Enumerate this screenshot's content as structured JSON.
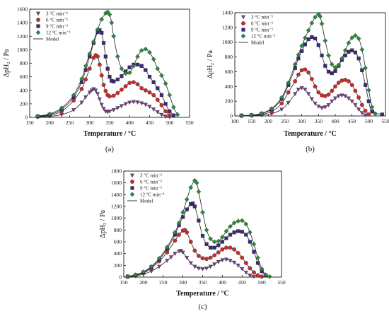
{
  "chart_data": [
    {
      "type": "scatter",
      "panel_label": "(a)",
      "xlabel": "Temperature / °C",
      "ylabel": "ΔpH₂ / Pa",
      "xlim": [
        150,
        550
      ],
      "ylim": [
        0,
        1600
      ],
      "xticks": [
        "150",
        "200",
        "250",
        "300",
        "350",
        "400",
        "450",
        "500",
        "550"
      ],
      "yticks": [
        "0",
        "200",
        "400",
        "600",
        "800",
        "1000",
        "1200",
        "1400",
        "1600"
      ],
      "legend_placement": "top-left",
      "legend": [
        "3 °C min⁻¹",
        "6 °C min⁻¹",
        "9 °C min⁻¹",
        "12 °C min⁻¹",
        "Model"
      ],
      "series": [
        {
          "rate": 3,
          "color": "#7b3f8c",
          "marker": "triangle-down",
          "x": [
            170,
            200,
            230,
            260,
            280,
            290,
            300,
            305,
            310,
            315,
            320,
            325,
            330,
            335,
            340,
            345,
            350,
            360,
            370,
            380,
            390,
            400,
            410,
            420,
            430,
            440,
            450,
            460,
            470,
            480,
            490,
            500
          ],
          "y": [
            5,
            15,
            40,
            110,
            220,
            300,
            370,
            400,
            420,
            400,
            350,
            270,
            190,
            130,
            90,
            80,
            90,
            110,
            140,
            170,
            200,
            220,
            230,
            225,
            210,
            190,
            160,
            120,
            80,
            40,
            15,
            5
          ]
        },
        {
          "rate": 6,
          "color": "#cc2b2b",
          "marker": "circle",
          "x": [
            170,
            200,
            230,
            260,
            280,
            290,
            300,
            310,
            315,
            320,
            325,
            330,
            335,
            340,
            345,
            350,
            360,
            370,
            380,
            390,
            400,
            410,
            420,
            430,
            440,
            450,
            460,
            470,
            480,
            490,
            500
          ],
          "y": [
            10,
            30,
            90,
            250,
            420,
            560,
            720,
            880,
            920,
            900,
            780,
            620,
            480,
            390,
            330,
            310,
            320,
            360,
            410,
            460,
            510,
            520,
            490,
            430,
            400,
            370,
            330,
            260,
            180,
            90,
            30
          ]
        },
        {
          "rate": 9,
          "color": "#3a2a78",
          "marker": "square",
          "x": [
            170,
            200,
            230,
            260,
            280,
            290,
            300,
            310,
            320,
            325,
            330,
            335,
            340,
            345,
            350,
            355,
            360,
            370,
            380,
            390,
            400,
            410,
            420,
            430,
            440,
            450,
            460,
            470,
            480,
            490,
            500,
            510
          ],
          "y": [
            15,
            40,
            120,
            300,
            520,
            700,
            900,
            1100,
            1260,
            1290,
            1250,
            1100,
            900,
            720,
            600,
            540,
            530,
            560,
            610,
            680,
            740,
            780,
            780,
            760,
            700,
            600,
            520,
            430,
            330,
            200,
            90,
            30
          ]
        },
        {
          "rate": 12,
          "color": "#2a8a3a",
          "marker": "diamond",
          "x": [
            170,
            200,
            230,
            260,
            280,
            290,
            300,
            310,
            320,
            330,
            340,
            345,
            350,
            355,
            360,
            370,
            380,
            390,
            400,
            410,
            420,
            430,
            440,
            450,
            460,
            470,
            480,
            490,
            500,
            510,
            520
          ],
          "y": [
            20,
            50,
            140,
            330,
            570,
            760,
            940,
            1120,
            1300,
            1450,
            1540,
            1560,
            1520,
            1400,
            1200,
            900,
            720,
            650,
            660,
            760,
            900,
            990,
            1010,
            960,
            860,
            720,
            620,
            500,
            330,
            150,
            40
          ]
        }
      ]
    },
    {
      "type": "scatter",
      "panel_label": "(b)",
      "xlabel": "Temperature / °C",
      "ylabel": "ΔpH₂ / Pa",
      "xlim": [
        100,
        550
      ],
      "ylim": [
        0,
        1400
      ],
      "xticks": [
        "100",
        "150",
        "200",
        "250",
        "300",
        "350",
        "400",
        "450",
        "500",
        "550"
      ],
      "yticks": [
        "0",
        "200",
        "400",
        "600",
        "800",
        "1000",
        "1200",
        "1400"
      ],
      "legend_placement": "top-left",
      "legend": [
        "3 °C min⁻¹",
        "6 °C min⁻¹",
        "9 °C min⁻¹",
        "12 °C min⁻¹",
        "Model"
      ],
      "series": [
        {
          "rate": 3,
          "color": "#7b3f8c",
          "marker": "triangle-down",
          "x": [
            120,
            150,
            180,
            210,
            240,
            260,
            280,
            290,
            300,
            310,
            320,
            330,
            340,
            350,
            360,
            370,
            380,
            390,
            400,
            410,
            420,
            430,
            440,
            450,
            460,
            470,
            480,
            490
          ],
          "y": [
            2,
            5,
            12,
            30,
            90,
            180,
            300,
            360,
            380,
            360,
            300,
            230,
            170,
            130,
            110,
            120,
            150,
            200,
            240,
            270,
            280,
            270,
            240,
            200,
            150,
            90,
            40,
            10
          ]
        },
        {
          "rate": 6,
          "color": "#cc2b2b",
          "marker": "circle",
          "x": [
            120,
            150,
            180,
            210,
            240,
            260,
            280,
            290,
            300,
            310,
            320,
            330,
            340,
            350,
            360,
            370,
            380,
            390,
            400,
            410,
            420,
            430,
            440,
            450,
            460,
            470,
            480,
            490,
            500
          ],
          "y": [
            3,
            8,
            20,
            60,
            170,
            320,
            470,
            560,
            620,
            630,
            590,
            500,
            400,
            320,
            280,
            270,
            290,
            340,
            400,
            450,
            480,
            490,
            470,
            420,
            340,
            250,
            150,
            70,
            20
          ]
        },
        {
          "rate": 9,
          "color": "#3a2a78",
          "marker": "square",
          "x": [
            120,
            150,
            180,
            210,
            240,
            260,
            280,
            290,
            300,
            310,
            320,
            330,
            340,
            350,
            360,
            370,
            380,
            390,
            400,
            410,
            420,
            430,
            440,
            450,
            460,
            470,
            480,
            490,
            500,
            510,
            540
          ],
          "y": [
            5,
            10,
            30,
            90,
            230,
            420,
            650,
            780,
            880,
            970,
            1040,
            1070,
            1050,
            960,
            820,
            680,
            600,
            580,
            610,
            680,
            760,
            820,
            870,
            890,
            860,
            780,
            620,
            420,
            200,
            60,
            20
          ]
        },
        {
          "rate": 12,
          "color": "#2a8a3a",
          "marker": "diamond",
          "x": [
            120,
            150,
            180,
            210,
            240,
            260,
            280,
            290,
            300,
            310,
            320,
            330,
            340,
            350,
            355,
            360,
            370,
            380,
            390,
            400,
            410,
            420,
            430,
            440,
            450,
            460,
            470,
            480,
            490,
            500,
            510,
            520
          ],
          "y": [
            6,
            12,
            35,
            100,
            250,
            450,
            700,
            830,
            950,
            1060,
            1160,
            1260,
            1340,
            1380,
            1350,
            1250,
            1020,
            820,
            700,
            660,
            690,
            780,
            890,
            990,
            1060,
            1090,
            1050,
            900,
            650,
            350,
            120,
            30
          ]
        }
      ]
    },
    {
      "type": "scatter",
      "panel_label": "(c)",
      "xlabel": "Temperature / °C",
      "ylabel": "ΔpH₂ / Pa",
      "xlim": [
        150,
        550
      ],
      "ylim": [
        0,
        1800
      ],
      "xticks": [
        "150",
        "200",
        "250",
        "300",
        "350",
        "400",
        "450",
        "500",
        "550"
      ],
      "yticks": [
        "0",
        "200",
        "400",
        "600",
        "800",
        "1000",
        "1200",
        "1400",
        "1600",
        "1800"
      ],
      "legend_placement": "top-left",
      "legend": [
        "3 °C min⁻¹",
        "6 °C min⁻¹",
        "9 °C min⁻¹",
        "12 °C min⁻¹",
        "Model"
      ],
      "series": [
        {
          "rate": 3,
          "color": "#7b3f8c",
          "marker": "triangle-down",
          "x": [
            160,
            180,
            200,
            220,
            240,
            260,
            270,
            280,
            290,
            295,
            300,
            310,
            320,
            330,
            340,
            350,
            360,
            370,
            380,
            390,
            400,
            410,
            420,
            430,
            440,
            450,
            460,
            470,
            480
          ],
          "y": [
            5,
            20,
            50,
            100,
            180,
            280,
            340,
            400,
            440,
            450,
            420,
            330,
            240,
            180,
            150,
            140,
            150,
            180,
            220,
            260,
            290,
            300,
            280,
            250,
            200,
            140,
            80,
            30,
            10
          ]
        },
        {
          "rate": 6,
          "color": "#cc2b2b",
          "marker": "circle",
          "x": [
            160,
            180,
            200,
            220,
            240,
            260,
            280,
            290,
            300,
            305,
            310,
            320,
            330,
            340,
            350,
            360,
            370,
            380,
            390,
            400,
            410,
            420,
            430,
            440,
            450,
            460,
            470,
            480,
            490,
            500
          ],
          "y": [
            8,
            30,
            70,
            150,
            270,
            420,
            620,
            720,
            790,
            800,
            760,
            600,
            450,
            360,
            320,
            310,
            330,
            370,
            420,
            470,
            500,
            500,
            470,
            410,
            330,
            240,
            150,
            80,
            30,
            10
          ]
        },
        {
          "rate": 9,
          "color": "#3a2a78",
          "marker": "square",
          "x": [
            160,
            180,
            200,
            220,
            240,
            260,
            280,
            290,
            300,
            310,
            320,
            325,
            330,
            340,
            350,
            360,
            370,
            380,
            390,
            400,
            410,
            420,
            430,
            440,
            450,
            460,
            470,
            480,
            490,
            500,
            510
          ],
          "y": [
            10,
            35,
            80,
            170,
            300,
            480,
            720,
            880,
            1020,
            1150,
            1240,
            1250,
            1200,
            960,
            700,
            560,
            500,
            500,
            540,
            600,
            660,
            720,
            760,
            780,
            770,
            720,
            600,
            430,
            240,
            100,
            30
          ]
        },
        {
          "rate": 12,
          "color": "#2a8a3a",
          "marker": "diamond",
          "x": [
            160,
            180,
            200,
            220,
            240,
            260,
            280,
            290,
            300,
            310,
            320,
            330,
            335,
            340,
            350,
            360,
            370,
            380,
            390,
            400,
            410,
            420,
            430,
            440,
            450,
            460,
            470,
            480,
            490,
            500,
            510,
            520
          ],
          "y": [
            12,
            40,
            90,
            180,
            320,
            510,
            760,
            920,
            1100,
            1320,
            1520,
            1640,
            1600,
            1450,
            1100,
            800,
            650,
            600,
            610,
            680,
            780,
            860,
            920,
            950,
            960,
            900,
            760,
            560,
            330,
            140,
            40,
            10
          ]
        }
      ]
    }
  ]
}
